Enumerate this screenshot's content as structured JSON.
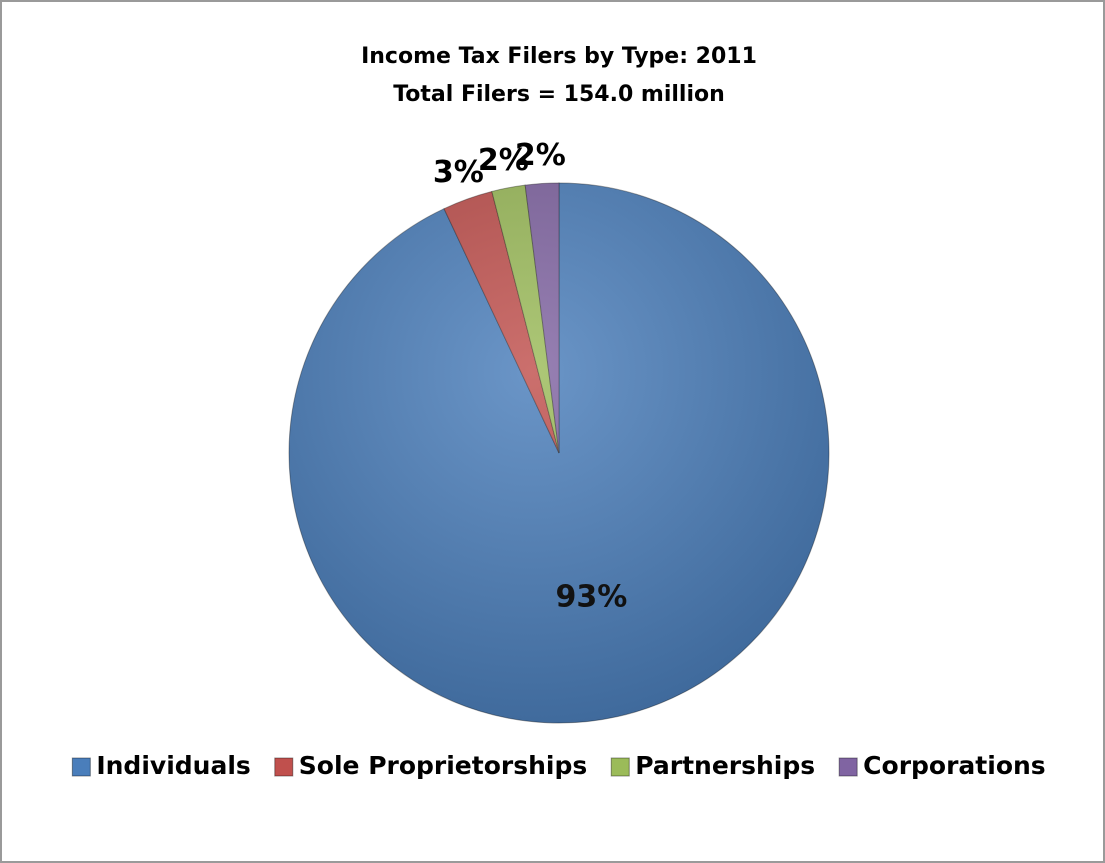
{
  "chart_data": {
    "type": "pie",
    "title": "Income Tax Filers by Type:  2011",
    "subtitle": "Total Filers = 154.0 million",
    "categories": [
      "Individuals",
      "Sole Proprietorships",
      "Partnerships",
      "Corporations"
    ],
    "values": [
      93,
      3,
      2,
      2
    ],
    "value_labels": [
      "93%",
      "3%",
      "2%",
      "2%"
    ],
    "colors": [
      "#4a7ebb",
      "#c0504d",
      "#9bbb59",
      "#8064a2"
    ],
    "legend": "bottom"
  }
}
